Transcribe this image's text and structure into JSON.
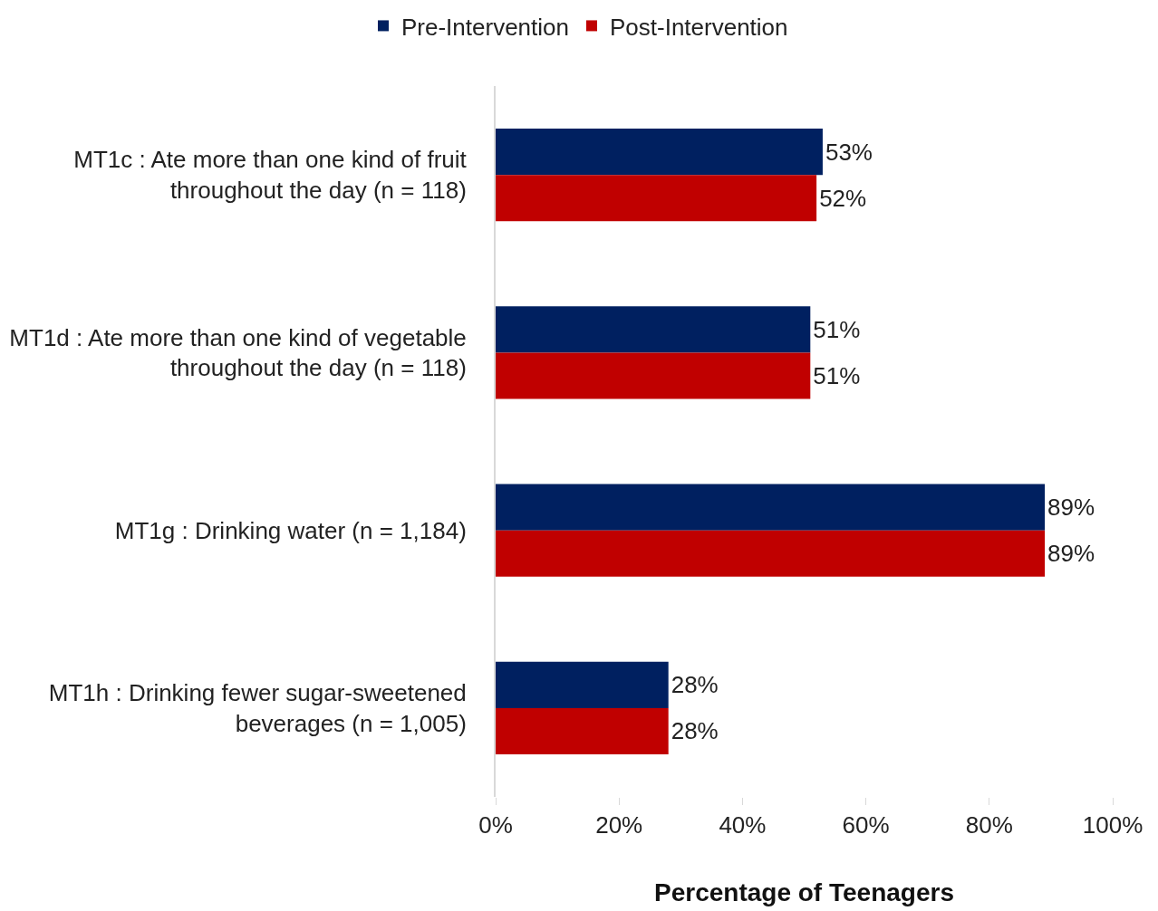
{
  "chart_data": {
    "type": "bar",
    "orientation": "horizontal",
    "xlabel": "Percentage of Teenagers",
    "categories": [
      "MT1c : Ate more than one kind of fruit throughout the day (n = 118)",
      "MT1d : Ate more than one kind of vegetable throughout the day (n = 118)",
      "MT1g : Drinking water (n = 1,184)",
      "MT1h : Drinking fewer sugar-sweetened beverages (n = 1,005)"
    ],
    "series": [
      {
        "name": "Pre-Intervention",
        "color": "#002060",
        "values": [
          53,
          51,
          89,
          28
        ],
        "value_labels": [
          "53%",
          "51%",
          "89%",
          "28%"
        ]
      },
      {
        "name": "Post-Intervention",
        "color": "#c00000",
        "values": [
          52,
          51,
          89,
          28
        ],
        "value_labels": [
          "52%",
          "51%",
          "89%",
          "28%"
        ]
      }
    ],
    "xlim": [
      0,
      100
    ],
    "xticks": [
      {
        "value": 0,
        "label": "0%"
      },
      {
        "value": 20,
        "label": "20%"
      },
      {
        "value": 40,
        "label": "40%"
      },
      {
        "value": 60,
        "label": "60%"
      },
      {
        "value": 80,
        "label": "80%"
      },
      {
        "value": 100,
        "label": "100%"
      }
    ],
    "legend": "top"
  }
}
